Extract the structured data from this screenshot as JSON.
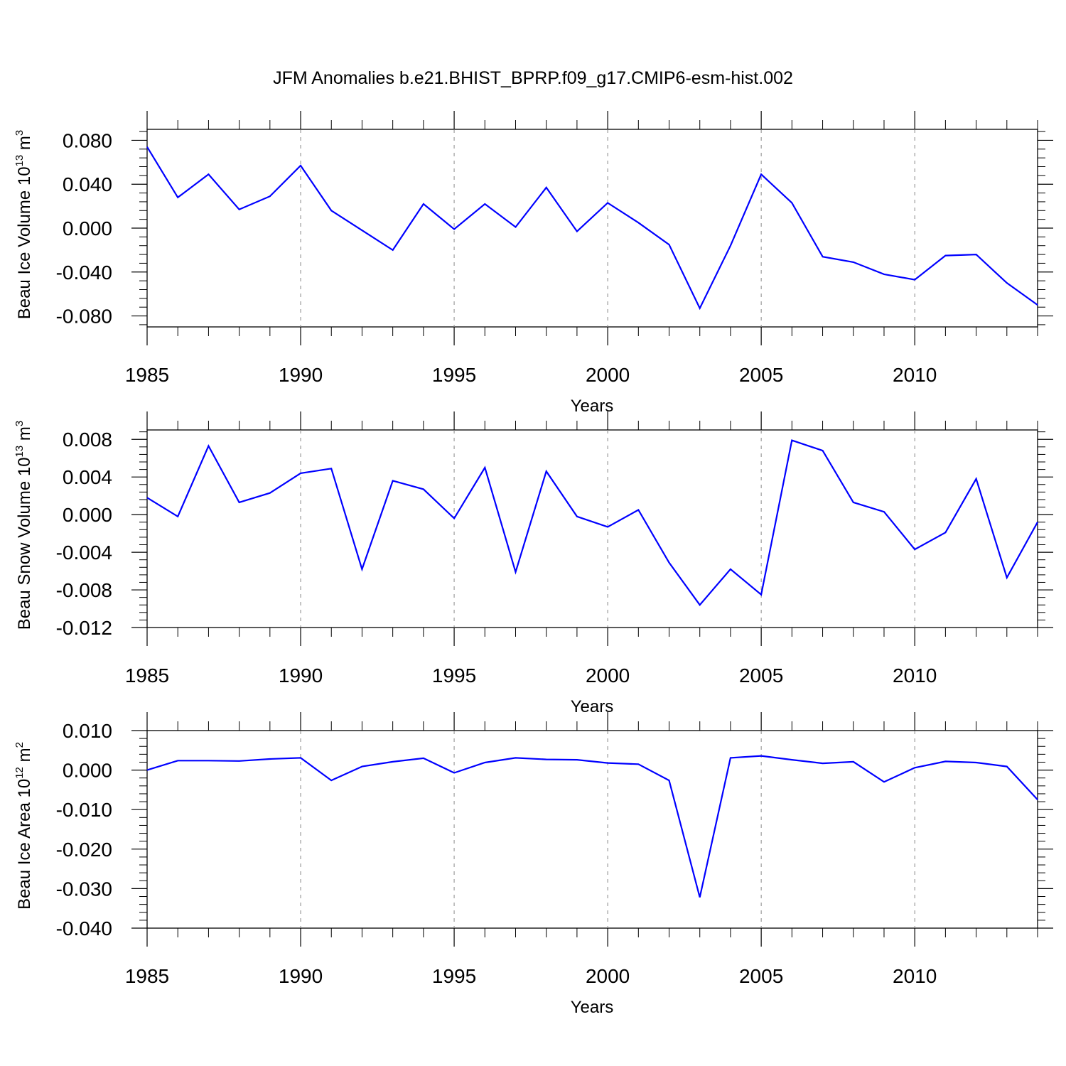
{
  "title": "JFM Anomalies b.e21.BHIST_BPRP.f09_g17.CMIP6-esm-hist.002",
  "line_color": "#0000ff",
  "chart_data": [
    {
      "type": "line",
      "ylabel": {
        "text": "Beau Ice Volume 10",
        "exp": "13",
        "unit": " m",
        "unit_exp": "3"
      },
      "xlabel": "Years",
      "xlim": [
        1985,
        2014
      ],
      "ylim": [
        -0.09,
        0.09
      ],
      "xticks": [
        "1985",
        "1990",
        "1995",
        "2000",
        "2005",
        "2010"
      ],
      "yticks": [
        {
          "value": 0.08,
          "label": "0.080"
        },
        {
          "value": 0.04,
          "label": "0.040"
        },
        {
          "value": 0.0,
          "label": "0.000"
        },
        {
          "value": -0.04,
          "label": "-0.040"
        },
        {
          "value": -0.08,
          "label": "-0.080"
        }
      ],
      "x": [
        1985,
        1986,
        1987,
        1988,
        1989,
        1990,
        1991,
        1992,
        1993,
        1994,
        1995,
        1996,
        1997,
        1998,
        1999,
        2000,
        2001,
        2002,
        2003,
        2004,
        2005,
        2006,
        2007,
        2008,
        2009,
        2010,
        2011,
        2012,
        2013,
        2014
      ],
      "values": [
        0.074,
        0.028,
        0.049,
        0.017,
        0.029,
        0.057,
        0.016,
        -0.002,
        -0.02,
        0.022,
        -0.001,
        0.022,
        0.001,
        0.037,
        -0.003,
        0.023,
        0.005,
        -0.015,
        -0.073,
        -0.016,
        0.049,
        0.023,
        -0.026,
        -0.031,
        -0.042,
        -0.047,
        -0.025,
        -0.024,
        -0.05,
        -0.07
      ]
    },
    {
      "type": "line",
      "ylabel": {
        "text": "Beau Snow Volume 10",
        "exp": "13",
        "unit": " m",
        "unit_exp": "3"
      },
      "xlabel": "Years",
      "xlim": [
        1985,
        2014
      ],
      "ylim": [
        -0.012,
        0.009
      ],
      "xticks": [
        "1985",
        "1990",
        "1995",
        "2000",
        "2005",
        "2010"
      ],
      "yticks": [
        {
          "value": 0.008,
          "label": "0.008"
        },
        {
          "value": 0.004,
          "label": "0.004"
        },
        {
          "value": 0.0,
          "label": "0.000"
        },
        {
          "value": -0.004,
          "label": "-0.004"
        },
        {
          "value": -0.008,
          "label": "-0.008"
        },
        {
          "value": -0.012,
          "label": "-0.012"
        }
      ],
      "x": [
        1985,
        1986,
        1987,
        1988,
        1989,
        1990,
        1991,
        1992,
        1993,
        1994,
        1995,
        1996,
        1997,
        1998,
        1999,
        2000,
        2001,
        2002,
        2003,
        2004,
        2005,
        2006,
        2007,
        2008,
        2009,
        2010,
        2011,
        2012,
        2013,
        2014
      ],
      "values": [
        0.0018,
        -0.0002,
        0.0073,
        0.0013,
        0.0023,
        0.0044,
        0.0049,
        -0.0058,
        0.0036,
        0.0027,
        -0.0004,
        0.005,
        -0.0061,
        0.0046,
        -0.0002,
        -0.0013,
        0.0005,
        -0.0051,
        -0.0096,
        -0.0058,
        -0.0085,
        0.0079,
        0.0068,
        0.0013,
        0.0003,
        -0.0037,
        -0.0019,
        0.0038,
        -0.0067,
        -0.0008
      ]
    },
    {
      "type": "line",
      "ylabel": {
        "text": "Beau Ice Area 10",
        "exp": "12",
        "unit": " m",
        "unit_exp": "2"
      },
      "xlabel": "Years",
      "xlim": [
        1985,
        2014
      ],
      "ylim": [
        -0.04,
        0.01
      ],
      "xticks": [
        "1985",
        "1990",
        "1995",
        "2000",
        "2005",
        "2010"
      ],
      "yticks": [
        {
          "value": 0.01,
          "label": "0.010"
        },
        {
          "value": 0.0,
          "label": "0.000"
        },
        {
          "value": -0.01,
          "label": "-0.010"
        },
        {
          "value": -0.02,
          "label": "-0.020"
        },
        {
          "value": -0.03,
          "label": "-0.030"
        },
        {
          "value": -0.04,
          "label": "-0.040"
        }
      ],
      "x": [
        1985,
        1986,
        1987,
        1988,
        1989,
        1990,
        1991,
        1992,
        1993,
        1994,
        1995,
        1996,
        1997,
        1998,
        1999,
        2000,
        2001,
        2002,
        2003,
        2004,
        2005,
        2006,
        2007,
        2008,
        2009,
        2010,
        2011,
        2012,
        2013,
        2014
      ],
      "values": [
        0.0,
        0.0024,
        0.0024,
        0.0023,
        0.0028,
        0.0031,
        -0.0026,
        0.0009,
        0.0021,
        0.003,
        -0.0007,
        0.0019,
        0.0031,
        0.0027,
        0.0026,
        0.0018,
        0.0015,
        -0.0026,
        -0.0322,
        0.0031,
        0.0036,
        0.0026,
        0.0017,
        0.0021,
        -0.003,
        0.0006,
        0.0022,
        0.0019,
        0.0009,
        -0.0075
      ]
    }
  ]
}
